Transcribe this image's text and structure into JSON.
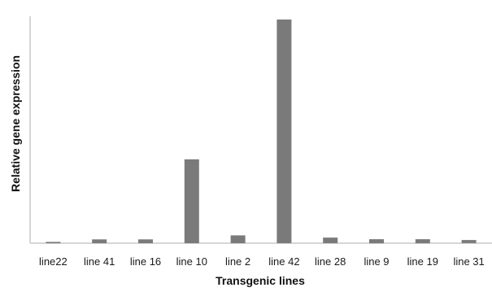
{
  "chart_data": {
    "type": "bar",
    "title": "",
    "xlabel": "Transgenic lines",
    "ylabel": "Relative gene expression",
    "categories": [
      "line22",
      "line 41",
      "line 16",
      "line 10",
      "line 2",
      "line 42",
      "line 28",
      "line 9",
      "line 19",
      "line 31"
    ],
    "values": [
      0.6,
      1.7,
      1.7,
      37.5,
      3.5,
      100,
      2.5,
      1.8,
      1.8,
      1.4
    ],
    "ylim": [
      0,
      100
    ],
    "grid": false,
    "legend": "none",
    "bar_color": "#7a7a7a",
    "axis_color": "#c9c9c9"
  }
}
